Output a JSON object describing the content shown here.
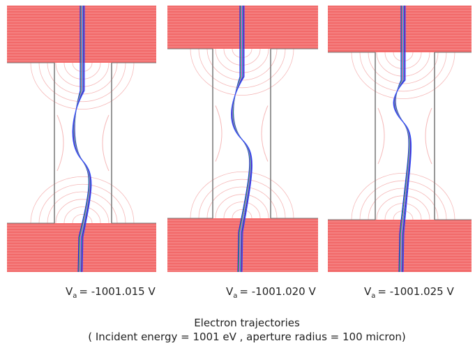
{
  "panels": [
    {
      "label": {
        "symbol": "V",
        "subscript": "a",
        "value": "= -1001.015 V"
      }
    },
    {
      "label": {
        "symbol": "V",
        "subscript": "a",
        "value": "= -1001.020 V"
      }
    },
    {
      "label": {
        "symbol": "V",
        "subscript": "a",
        "value": "= -1001.025 V"
      }
    }
  ],
  "caption": {
    "title": "Electron trajectories",
    "subtitle": "( Incident energy = 1001 eV , aperture radius = 100 micron)"
  }
}
